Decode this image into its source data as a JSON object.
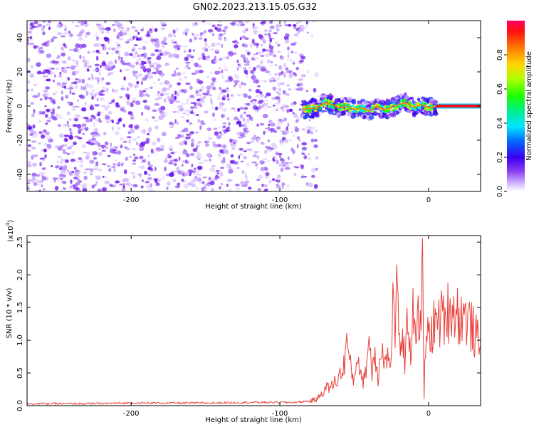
{
  "title": "GN02.2023.213.15.05.G32",
  "chart_data": [
    {
      "type": "heatmap",
      "xlabel": "Height of straight line (km)",
      "ylabel": "Frequency (Hz)",
      "xlim": [
        -270,
        35
      ],
      "ylim": [
        -50,
        50
      ],
      "xticks": [
        -200,
        -100,
        0
      ],
      "yticks": [
        -40,
        -20,
        0,
        20,
        40
      ],
      "colorbar": {
        "label": "Normalized spectral amplitude",
        "range": [
          0,
          1
        ],
        "ticks": [
          0.0,
          0.2,
          0.4,
          0.6,
          0.8
        ]
      },
      "noise_region_x": [
        -270,
        -75
      ],
      "signal_trace": {
        "x": [
          -85,
          -75,
          -70,
          -65,
          -60,
          -55,
          -50,
          -45,
          -40,
          -35,
          -30,
          -25,
          -20,
          -15,
          -10,
          -5,
          0,
          5,
          35
        ],
        "y": [
          -2,
          -1,
          2,
          1,
          -1,
          0,
          -2,
          -1,
          -3,
          0,
          -2,
          -1,
          1,
          2,
          -1,
          1,
          -1,
          0,
          0
        ]
      }
    },
    {
      "type": "line",
      "xlabel": "Height of straight line (km)",
      "ylabel": "SNR (10 * v/v)",
      "ymultiplier": "(x10^4)",
      "ymultiplier_base": "(x10",
      "ymultiplier_exp": "4",
      "ymultiplier_close": ")",
      "xlim": [
        -270,
        35
      ],
      "ylim": [
        0,
        2.6
      ],
      "xticks": [
        -200,
        -100,
        0
      ],
      "yticks": [
        0.0,
        0.5,
        1.0,
        1.5,
        2.0,
        2.5
      ],
      "series": [
        {
          "color": "#e8413b",
          "x": [
            -270,
            -250,
            -230,
            -200,
            -180,
            -150,
            -120,
            -100,
            -90,
            -80,
            -75,
            -70,
            -65,
            -60,
            -57,
            -55,
            -52,
            -50,
            -48,
            -46,
            -45,
            -43,
            -41,
            -40,
            -38,
            -36,
            -34,
            -32,
            -30,
            -28,
            -26,
            -24,
            -22,
            -21,
            -20,
            -18,
            -16,
            -14,
            -12,
            -10,
            -8,
            -6,
            -5,
            -4,
            -3,
            -2,
            0,
            3,
            6,
            10,
            15,
            20,
            25,
            30,
            35
          ],
          "y": [
            0.03,
            0.03,
            0.03,
            0.04,
            0.04,
            0.04,
            0.05,
            0.05,
            0.05,
            0.07,
            0.1,
            0.25,
            0.3,
            0.45,
            0.6,
            1.0,
            0.5,
            0.4,
            0.8,
            0.6,
            0.3,
            0.5,
            0.7,
            1.1,
            0.5,
            0.9,
            0.4,
            1.0,
            0.6,
            0.8,
            0.5,
            1.5,
            1.1,
            2.15,
            0.8,
            1.2,
            0.7,
            1.3,
            0.9,
            1.5,
            1.2,
            1.4,
            0.9,
            2.6,
            0.1,
            1.0,
            1.05,
            1.2,
            1.3,
            1.35,
            1.5,
            1.4,
            1.35,
            1.15,
            0.88
          ]
        }
      ]
    }
  ]
}
